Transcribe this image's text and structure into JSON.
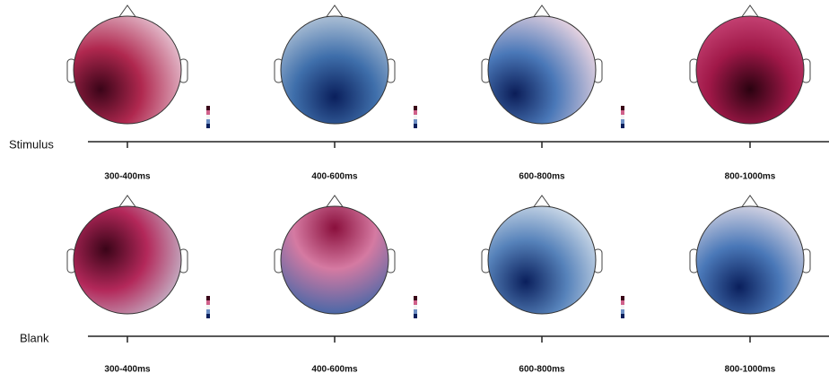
{
  "rows": [
    {
      "label": "Stimulus",
      "windows": [
        "300-400ms",
        "400-600ms",
        "600-800ms",
        "800-1000ms"
      ]
    },
    {
      "label": "Blank",
      "windows": [
        "300-400ms",
        "400-600ms",
        "600-800ms",
        "800-1000ms"
      ]
    }
  ]
}
